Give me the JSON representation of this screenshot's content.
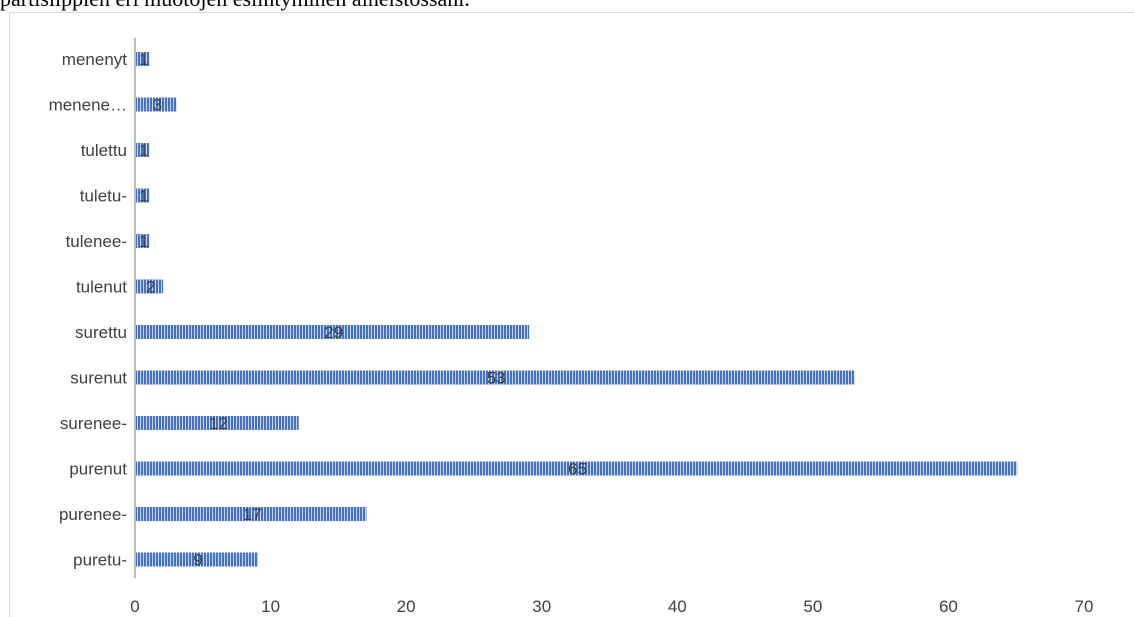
{
  "caption": "partisiippien eri muotojen esiintyminen aineistossani.",
  "chart_data": {
    "type": "bar",
    "orientation": "horizontal",
    "categories": [
      "menenyt",
      "menene…",
      "tulettu",
      "tuletu-",
      "tulenee-",
      "tulenut",
      "surettu",
      "surenut",
      "surenee-",
      "purenut",
      "purenee-",
      "puretu-"
    ],
    "values": [
      1,
      3,
      1,
      1,
      1,
      2,
      29,
      53,
      12,
      65,
      17,
      9
    ],
    "xlim": [
      0,
      70
    ],
    "xticks": [
      0,
      10,
      20,
      30,
      40,
      50,
      60,
      70
    ],
    "title": "",
    "xlabel": "",
    "ylabel": "",
    "grid": false,
    "bar_color": "#4472c4",
    "bar_fill": "vertical-stripes"
  }
}
